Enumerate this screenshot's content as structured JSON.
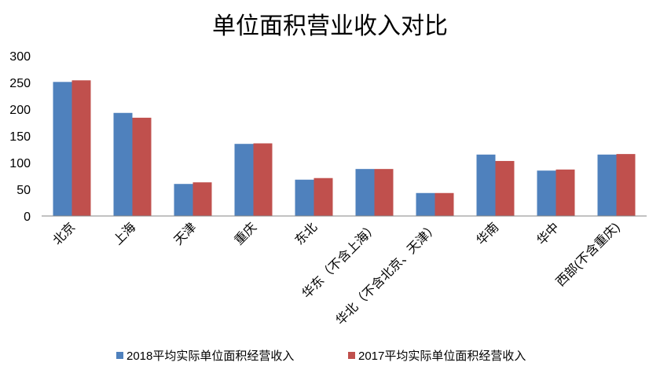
{
  "chart_data": {
    "type": "bar",
    "title": "单位面积营业收入对比",
    "xlabel": "",
    "ylabel": "",
    "categories": [
      "北京",
      "上海",
      "天津",
      "重庆",
      "东北",
      "华东（不含上海）",
      "华北（不含北京、天津）",
      "华南",
      "华中",
      "西部(不含重庆)"
    ],
    "series": [
      {
        "name": "2018平均实际单位面积经营收入",
        "color": "#4F81BD",
        "values": [
          251,
          193,
          60,
          135,
          68,
          88,
          43,
          115,
          85,
          115
        ]
      },
      {
        "name": "2017平均实际单位面积经营收入",
        "color": "#C0504D",
        "values": [
          254,
          184,
          63,
          136,
          71,
          88,
          43,
          103,
          87,
          116
        ]
      }
    ],
    "ylim": [
      0,
      300
    ],
    "yticks": [
      0,
      50,
      100,
      150,
      200,
      250,
      300
    ],
    "grid": false,
    "legend": "bottom"
  }
}
